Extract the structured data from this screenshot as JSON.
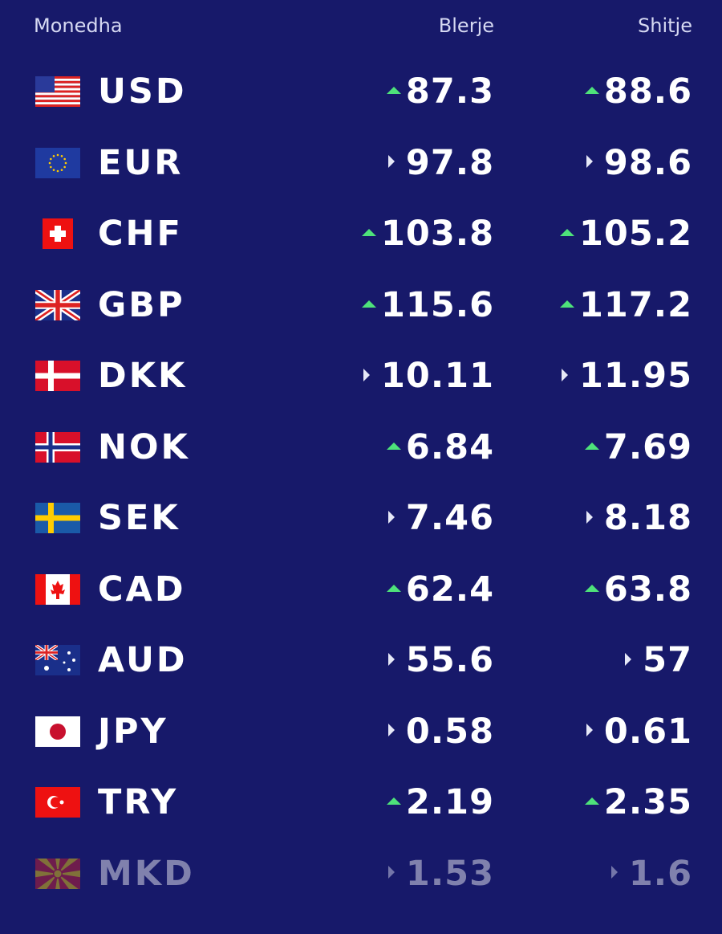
{
  "header": {
    "currency": "Monedha",
    "buy": "Blerje",
    "sell": "Shitje"
  },
  "rows": [
    {
      "code": "USD",
      "buy": "87.3",
      "sell": "88.6",
      "buy_trend": "up",
      "sell_trend": "up"
    },
    {
      "code": "EUR",
      "buy": "97.8",
      "sell": "98.6",
      "buy_trend": "flat",
      "sell_trend": "flat"
    },
    {
      "code": "CHF",
      "buy": "103.8",
      "sell": "105.2",
      "buy_trend": "up",
      "sell_trend": "up"
    },
    {
      "code": "GBP",
      "buy": "115.6",
      "sell": "117.2",
      "buy_trend": "up",
      "sell_trend": "up"
    },
    {
      "code": "DKK",
      "buy": "10.11",
      "sell": "11.95",
      "buy_trend": "flat",
      "sell_trend": "flat"
    },
    {
      "code": "NOK",
      "buy": "6.84",
      "sell": "7.69",
      "buy_trend": "up",
      "sell_trend": "up"
    },
    {
      "code": "SEK",
      "buy": "7.46",
      "sell": "8.18",
      "buy_trend": "flat",
      "sell_trend": "flat"
    },
    {
      "code": "CAD",
      "buy": "62.4",
      "sell": "63.8",
      "buy_trend": "up",
      "sell_trend": "up"
    },
    {
      "code": "AUD",
      "buy": "55.6",
      "sell": "57",
      "buy_trend": "flat",
      "sell_trend": "flat"
    },
    {
      "code": "JPY",
      "buy": "0.58",
      "sell": "0.61",
      "buy_trend": "flat",
      "sell_trend": "flat"
    },
    {
      "code": "TRY",
      "buy": "2.19",
      "sell": "2.35",
      "buy_trend": "up",
      "sell_trend": "up"
    },
    {
      "code": "MKD",
      "buy": "1.53",
      "sell": "1.6",
      "buy_trend": "flat",
      "sell_trend": "flat",
      "faded": true
    }
  ]
}
